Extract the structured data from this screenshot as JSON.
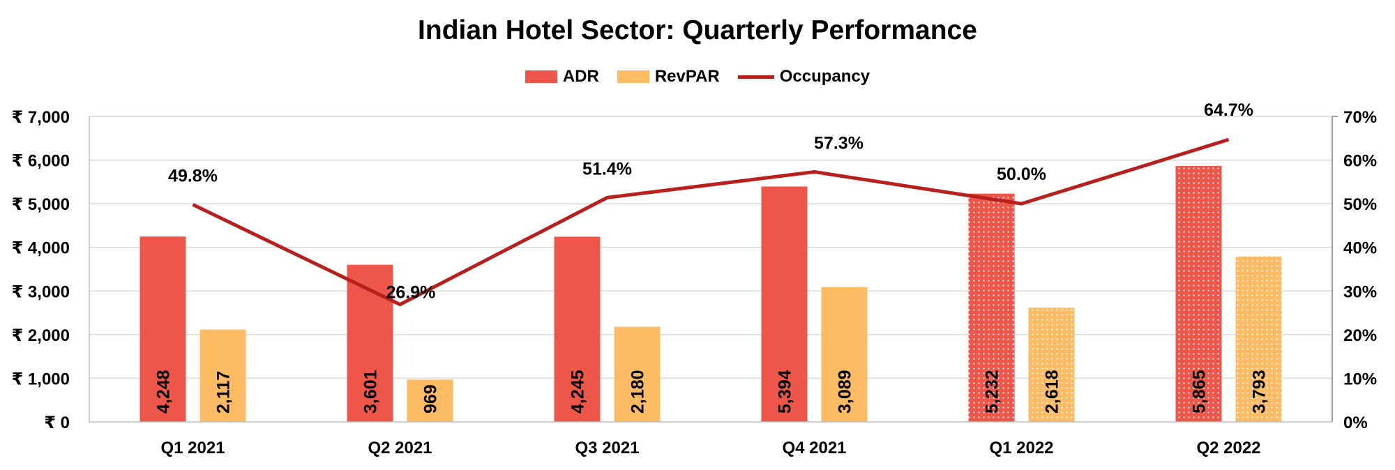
{
  "chart_data": {
    "type": "bar",
    "title": "Indian Hotel Sector: Quarterly Performance",
    "categories": [
      "Q1 2021",
      "Q2 2021",
      "Q3 2021",
      "Q4 2021",
      "Q1 2022",
      "Q2 2022"
    ],
    "series": [
      {
        "name": "ADR",
        "type": "bar",
        "axis": "left",
        "color": "#EE564A",
        "values": [
          4248,
          3601,
          4245,
          5394,
          5232,
          5865
        ],
        "labels": [
          "4,248",
          "3,601",
          "4,245",
          "5,394",
          "5,232",
          "5,865"
        ]
      },
      {
        "name": "RevPAR",
        "type": "bar",
        "axis": "left",
        "color": "#FDBB63",
        "values": [
          2117,
          969,
          2180,
          3089,
          2618,
          3793
        ],
        "labels": [
          "2,117",
          "969",
          "2,180",
          "3,089",
          "2,618",
          "3,793"
        ]
      },
      {
        "name": "Occupancy",
        "type": "line",
        "axis": "right",
        "color": "#B7201C",
        "values": [
          49.8,
          26.9,
          51.4,
          57.3,
          50.0,
          64.7
        ],
        "labels": [
          "49.8%",
          "26.9%",
          "51.4%",
          "57.3%",
          "50.0%",
          "64.7%"
        ]
      }
    ],
    "patterned_categories": [
      "Q1 2022",
      "Q2 2022"
    ],
    "y_left": {
      "ylim": [
        0,
        7000
      ],
      "ticks": [
        0,
        1000,
        2000,
        3000,
        4000,
        5000,
        6000,
        7000
      ],
      "tick_labels": [
        "₹ 0",
        "₹ 1,000",
        "₹ 2,000",
        "₹ 3,000",
        "₹ 4,000",
        "₹ 5,000",
        "₹ 6,000",
        "₹ 7,000"
      ]
    },
    "y_right": {
      "ylim": [
        0,
        70
      ],
      "ticks": [
        0,
        10,
        20,
        30,
        40,
        50,
        60,
        70
      ],
      "tick_labels": [
        "0%",
        "10%",
        "20%",
        "30%",
        "40%",
        "50%",
        "60%",
        "70%"
      ]
    },
    "grid": true,
    "legend_position": "top-center"
  }
}
